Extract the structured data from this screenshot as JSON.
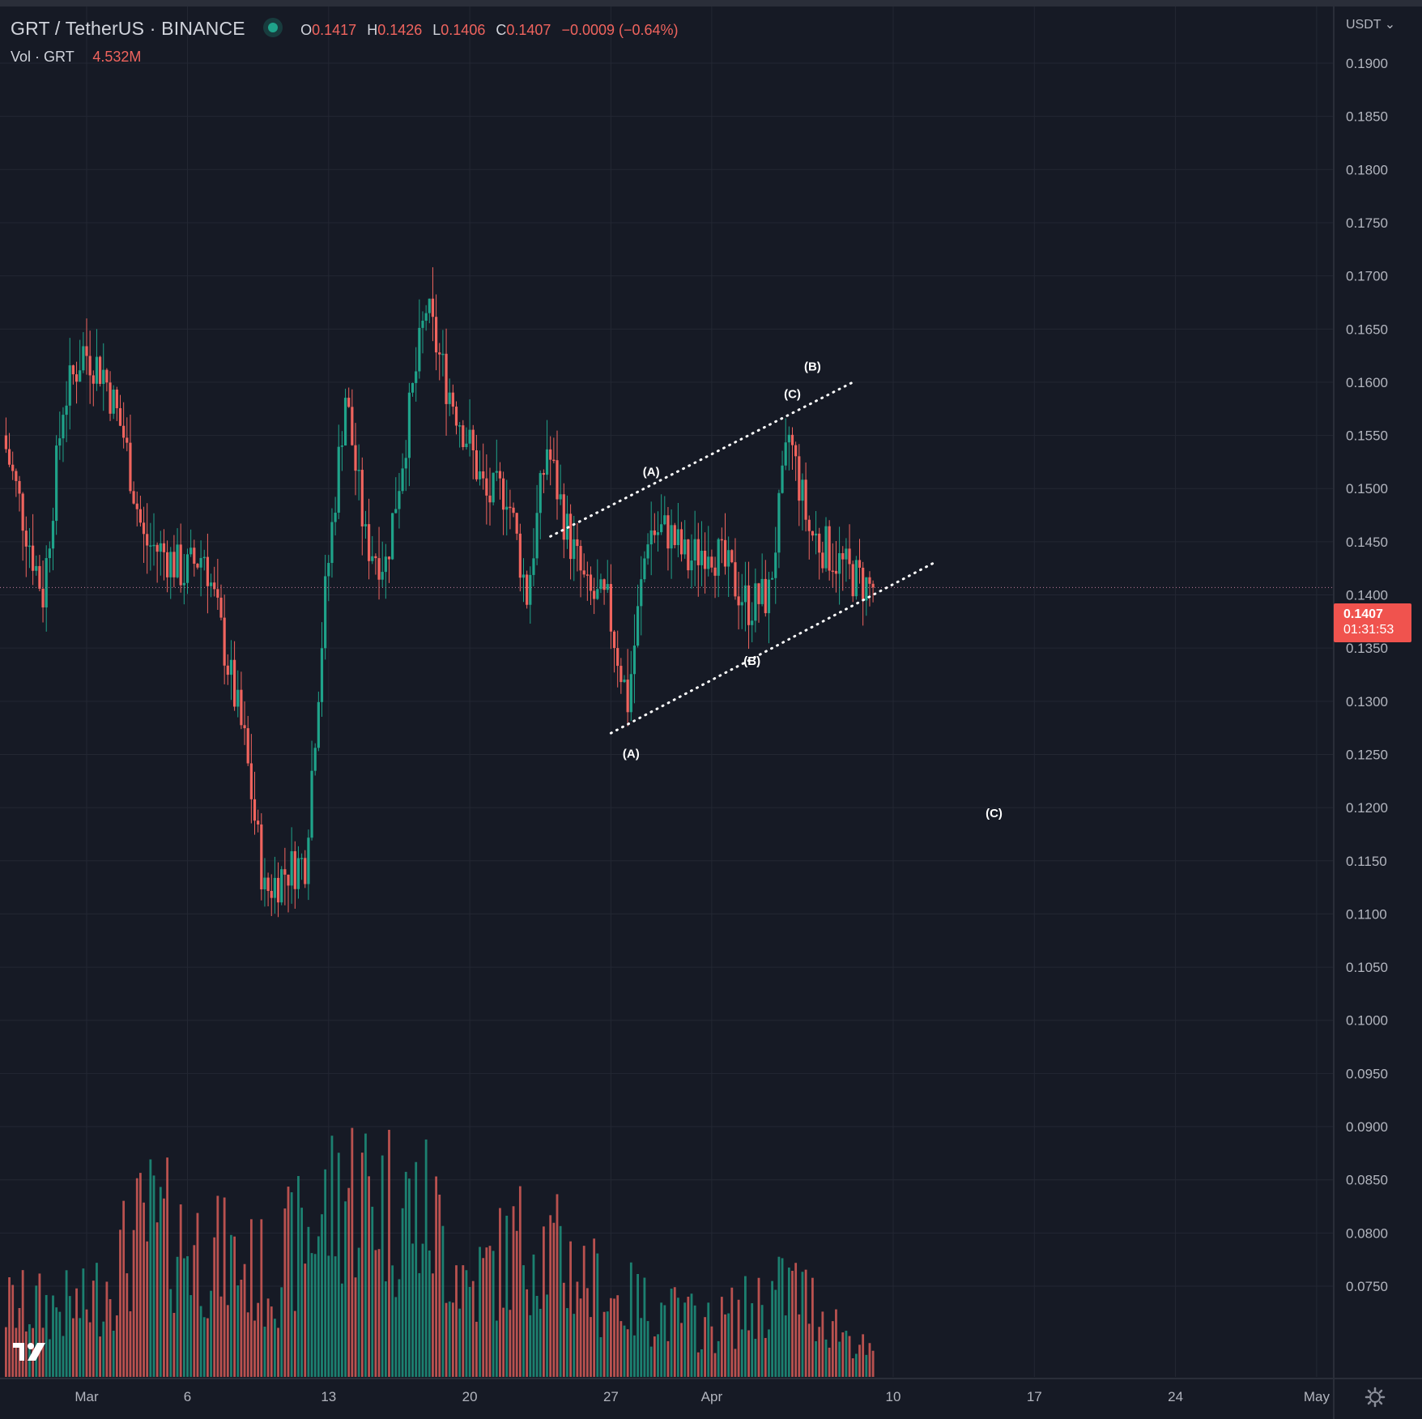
{
  "header": {
    "title": "GRT / TetherUS · BINANCE",
    "ohlc": [
      {
        "key": "O",
        "value": "0.1417"
      },
      {
        "key": "H",
        "value": "0.1426"
      },
      {
        "key": "L",
        "value": "0.1406"
      },
      {
        "key": "C",
        "value": "0.1407"
      }
    ],
    "change": "−0.0009 (−0.64%)",
    "volume_label": "Vol · GRT",
    "volume_value": "4.532M",
    "currency": "USDT"
  },
  "price_badge": {
    "price": "0.1407",
    "countdown": "01:31:53"
  },
  "colors": {
    "background": "#161a25",
    "up": "#1fa38a",
    "down": "#f0645e",
    "grid": "#232733",
    "badge": "#f0534e"
  },
  "icons": {
    "logo": "tradingview-logo-icon",
    "settings": "gear-icon"
  },
  "chart_data": {
    "type": "candlestick",
    "symbol": "GRT / TetherUS",
    "exchange": "BINANCE",
    "timeframe": "4h",
    "x_tick_labels": [
      "Mar",
      "6",
      "13",
      "20",
      "27",
      "Apr",
      "10",
      "17",
      "24",
      "May"
    ],
    "y_tick_labels": [
      "0.1900",
      "0.1850",
      "0.1800",
      "0.1750",
      "0.1700",
      "0.1650",
      "0.1600",
      "0.1550",
      "0.1500",
      "0.1450",
      "0.1400",
      "0.1350",
      "0.1300",
      "0.1250",
      "0.1200",
      "0.1150",
      "0.1100",
      "0.1050",
      "0.1000",
      "0.0950",
      "0.0900",
      "0.0850",
      "0.0800",
      "0.0750"
    ],
    "ylim": [
      0.0725,
      0.1925
    ],
    "last_price": 0.1407,
    "price_key_points": [
      {
        "date": "2023-02-25",
        "price": 0.155
      },
      {
        "date": "2023-02-27",
        "price": 0.14
      },
      {
        "date": "2023-02-28",
        "price": 0.158
      },
      {
        "date": "2023-03-01",
        "price": 0.163
      },
      {
        "date": "2023-03-02",
        "price": 0.161
      },
      {
        "date": "2023-03-03",
        "price": 0.155
      },
      {
        "date": "2023-03-04",
        "price": 0.145
      },
      {
        "date": "2023-03-05",
        "price": 0.144
      },
      {
        "date": "2023-03-06",
        "price": 0.142
      },
      {
        "date": "2023-03-07",
        "price": 0.144
      },
      {
        "date": "2023-03-08",
        "price": 0.135
      },
      {
        "date": "2023-03-09",
        "price": 0.126
      },
      {
        "date": "2023-03-10",
        "price": 0.112
      },
      {
        "date": "2023-03-11",
        "price": 0.114
      },
      {
        "date": "2023-03-12",
        "price": 0.115
      },
      {
        "date": "2023-03-13",
        "price": 0.14
      },
      {
        "date": "2023-03-14",
        "price": 0.159
      },
      {
        "date": "2023-03-15",
        "price": 0.145
      },
      {
        "date": "2023-03-16",
        "price": 0.143
      },
      {
        "date": "2023-03-17",
        "price": 0.155
      },
      {
        "date": "2023-03-18",
        "price": 0.167
      },
      {
        "date": "2023-03-19",
        "price": 0.16
      },
      {
        "date": "2023-03-20",
        "price": 0.155
      },
      {
        "date": "2023-03-21",
        "price": 0.149
      },
      {
        "date": "2023-03-22",
        "price": 0.15
      },
      {
        "date": "2023-03-23",
        "price": 0.14
      },
      {
        "date": "2023-03-24",
        "price": 0.154
      },
      {
        "date": "2023-03-25",
        "price": 0.146
      },
      {
        "date": "2023-03-26",
        "price": 0.14
      },
      {
        "date": "2023-03-27",
        "price": 0.139
      },
      {
        "date": "2023-03-28",
        "price": 0.13
      },
      {
        "date": "2023-03-29",
        "price": 0.146
      },
      {
        "date": "2023-03-30",
        "price": 0.146
      },
      {
        "date": "2023-03-31",
        "price": 0.143
      },
      {
        "date": "2023-04-01",
        "price": 0.145
      },
      {
        "date": "2023-04-02",
        "price": 0.142
      },
      {
        "date": "2023-04-03",
        "price": 0.139
      },
      {
        "date": "2023-04-04",
        "price": 0.14
      },
      {
        "date": "2023-04-05",
        "price": 0.155
      },
      {
        "date": "2023-04-06",
        "price": 0.146
      },
      {
        "date": "2023-04-07",
        "price": 0.144
      },
      {
        "date": "2023-04-08",
        "price": 0.142
      },
      {
        "date": "2023-04-09",
        "price": 0.1407
      }
    ],
    "trendlines": [
      {
        "from": {
          "date": "2023-03-24",
          "price": 0.1455
        },
        "to": {
          "date": "2023-04-08",
          "price": 0.16
        }
      },
      {
        "from": {
          "date": "2023-03-27",
          "price": 0.127
        },
        "to": {
          "date": "2023-04-12",
          "price": 0.143
        }
      }
    ],
    "annotations": [
      {
        "text": "(A)",
        "date": "2023-03-29",
        "price": 0.1512
      },
      {
        "text": "(B)",
        "date": "2023-04-06",
        "price": 0.1611
      },
      {
        "text": "(C)",
        "date": "2023-04-05",
        "price": 0.1585
      },
      {
        "text": "(B)",
        "date": "2023-04-03",
        "price": 0.1334
      },
      {
        "text": "(A)",
        "date": "2023-03-28",
        "price": 0.1247
      },
      {
        "text": "(C)",
        "date": "2023-04-15",
        "price": 0.1191
      }
    ],
    "volume_key_points": [
      {
        "date": "2023-03-01",
        "volume": 0.35
      },
      {
        "date": "2023-03-04",
        "volume": 0.75
      },
      {
        "date": "2023-03-10",
        "volume": 0.5
      },
      {
        "date": "2023-03-14",
        "volume": 0.95
      },
      {
        "date": "2023-03-18",
        "volume": 0.8
      },
      {
        "date": "2023-03-20",
        "volume": 0.45
      },
      {
        "date": "2023-03-23",
        "volume": 0.7
      },
      {
        "date": "2023-03-27",
        "volume": 0.4
      },
      {
        "date": "2023-04-01",
        "volume": 0.25
      },
      {
        "date": "2023-04-05",
        "volume": 0.45
      },
      {
        "date": "2023-04-09",
        "volume": 0.1
      }
    ]
  }
}
